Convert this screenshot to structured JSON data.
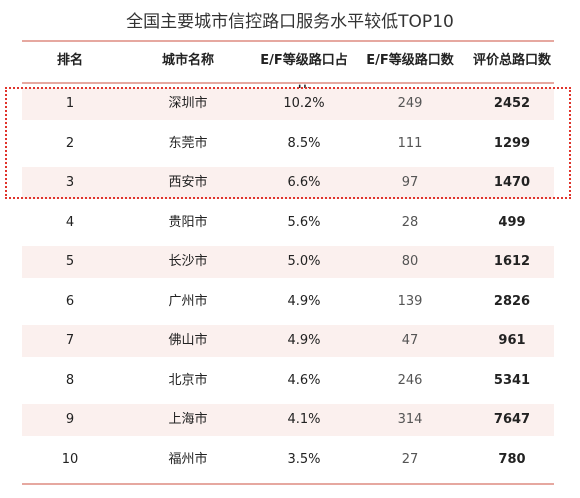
{
  "title": "全国主要城市信控路口服务水平较低TOP10",
  "headers": [
    "排名",
    "城市名称",
    "E/F等级路口占比",
    "E/F等级路口数",
    "评价总路口数"
  ],
  "rows": [
    {
      "rank": "1",
      "city": "深圳市",
      "ratio": "10.2%",
      "ef_count": "249",
      "total": "2452"
    },
    {
      "rank": "2",
      "city": "东莞市",
      "ratio": "8.5%",
      "ef_count": "111",
      "total": "1299"
    },
    {
      "rank": "3",
      "city": "西安市",
      "ratio": "6.6%",
      "ef_count": "97",
      "total": "1470"
    },
    {
      "rank": "4",
      "city": "贵阳市",
      "ratio": "5.6%",
      "ef_count": "28",
      "total": "499"
    },
    {
      "rank": "5",
      "city": "长沙市",
      "ratio": "5.0%",
      "ef_count": "80",
      "total": "1612"
    },
    {
      "rank": "6",
      "city": "广州市",
      "ratio": "4.9%",
      "ef_count": "139",
      "total": "2826"
    },
    {
      "rank": "7",
      "city": "佛山市",
      "ratio": "4.9%",
      "ef_count": "47",
      "total": "961"
    },
    {
      "rank": "8",
      "city": "北京市",
      "ratio": "4.6%",
      "ef_count": "246",
      "total": "5341"
    },
    {
      "rank": "9",
      "city": "上海市",
      "ratio": "4.1%",
      "ef_count": "314",
      "total": "7647"
    },
    {
      "rank": "10",
      "city": "福州市",
      "ratio": "3.5%",
      "ef_count": "27",
      "total": "780"
    }
  ],
  "colors": {
    "accent_line": "#e6a8a0",
    "row_shade": "#fbf0ee",
    "highlight_border": "#e0342c"
  }
}
